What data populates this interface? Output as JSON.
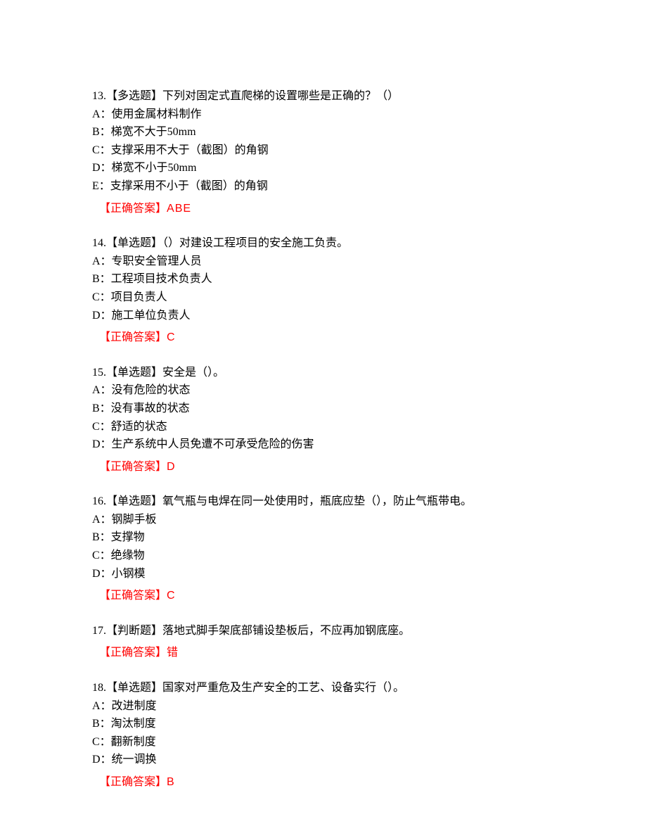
{
  "text_color": "#000000",
  "answer_color": "#ff0000",
  "background_color": "#ffffff",
  "font_size": 16,
  "answer_label": "【正确答案】",
  "questions": [
    {
      "num": "13.",
      "type": "【多选题】",
      "stem": "下列对固定式直爬梯的设置哪些是正确的？（）",
      "options": [
        "A：使用金属材料制作",
        "B：梯宽不大于50mm",
        "C：支撑采用不大于（截图）的角钢",
        "D：梯宽不小于50mm",
        "E：支撑采用不小于（截图）的角钢"
      ],
      "answer": "ABE"
    },
    {
      "num": "14.",
      "type": "【单选题】",
      "stem": "（）对建设工程项目的安全施工负责。",
      "options": [
        "A：专职安全管理人员",
        "B：工程项目技术负责人",
        "C：项目负责人",
        "D：施工单位负责人"
      ],
      "answer": "C"
    },
    {
      "num": "15.",
      "type": "【单选题】",
      "stem": "安全是（）。",
      "options": [
        "A：没有危险的状态",
        "B：没有事故的状态",
        "C：舒适的状态",
        "D：生产系统中人员免遭不可承受危险的伤害"
      ],
      "answer": "D"
    },
    {
      "num": "16.",
      "type": "【单选题】",
      "stem": "氧气瓶与电焊在同一处使用时，瓶底应垫（），防止气瓶带电。",
      "options": [
        "A：钢脚手板",
        "B：支撑物",
        "C：绝缘物",
        "D：小钢模"
      ],
      "answer": "C"
    },
    {
      "num": "17.",
      "type": "【判断题】",
      "stem": "落地式脚手架底部铺设垫板后，不应再加钢底座。",
      "options": [],
      "answer": "错"
    },
    {
      "num": "18.",
      "type": "【单选题】",
      "stem": "国家对严重危及生产安全的工艺、设备实行（）。",
      "options": [
        "A：改进制度",
        "B：淘汰制度",
        "C：翻新制度",
        "D：统一调换"
      ],
      "answer": "B"
    }
  ]
}
